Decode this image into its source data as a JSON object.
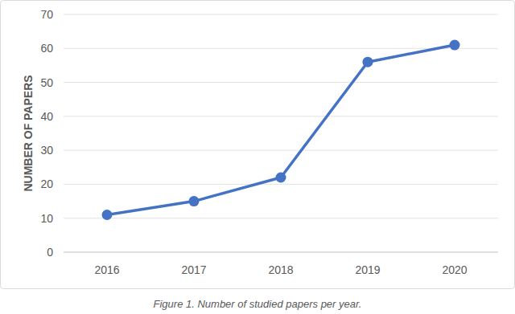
{
  "chart_data": {
    "type": "line",
    "title": "Figure 1. Number of studied papers per year.",
    "y_label": "NUMBER OF PAPERS",
    "categories": [
      "2016",
      "2017",
      "2018",
      "2019",
      "2020"
    ],
    "values": [
      11,
      15,
      22,
      56,
      61
    ],
    "color": "#4472c4",
    "marker": "circle",
    "line_style": "solid",
    "ylim": [
      0,
      70
    ],
    "yticks": [
      0,
      10,
      20,
      30,
      40,
      50,
      60,
      70
    ],
    "grid": true
  }
}
